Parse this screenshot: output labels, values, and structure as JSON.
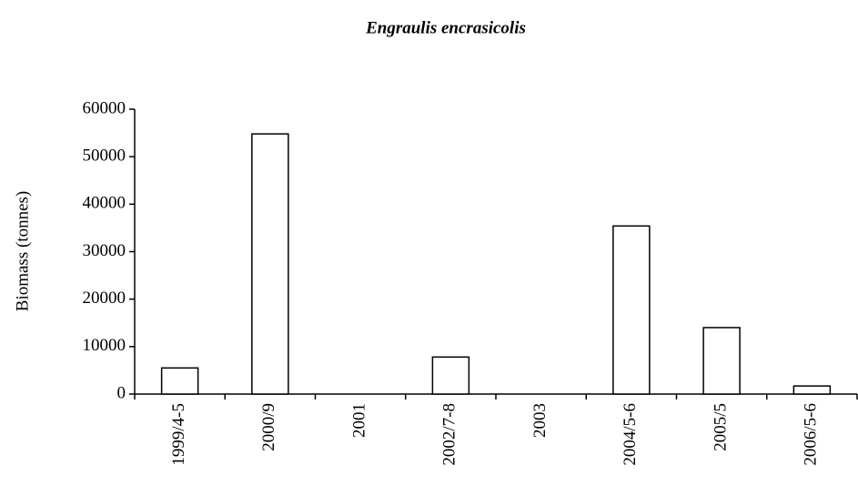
{
  "chart_data": {
    "type": "bar",
    "title": "Engraulis encrasicolis",
    "y_label": "Biomass (tonnes)",
    "categories": [
      "1999/4-5",
      "2000/9",
      "2001",
      "2002/7-8",
      "2003",
      "2004/5-6",
      "2005/5",
      "2006/5-6"
    ],
    "values": [
      5500,
      54800,
      0,
      7800,
      0,
      35400,
      14000,
      1700
    ],
    "color": "#ffffff",
    "edge_color": "#000000",
    "ylim": [
      0,
      60000
    ],
    "yticks": [
      0,
      10000,
      20000,
      30000,
      40000,
      50000,
      60000
    ],
    "grid": false
  }
}
